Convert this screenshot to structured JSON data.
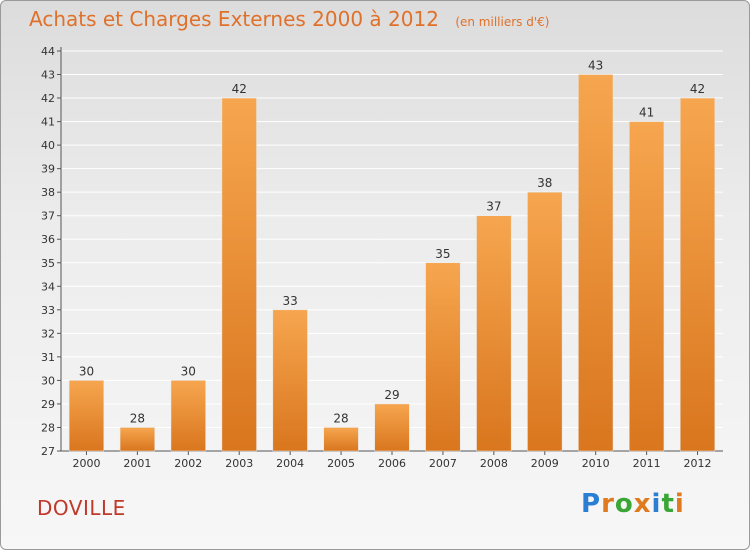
{
  "header": {
    "title": "Achats et Charges Externes 2000 à 2012",
    "subtitle": "(en milliers d'€)"
  },
  "footer": {
    "commune": "DOVILLE",
    "logo_letters": [
      "P",
      "r",
      "o",
      "x",
      "i",
      "t",
      "i"
    ],
    "logo_colors": [
      "#2a7fd4",
      "#e07a1f",
      "#3aa635",
      "#e07a1f",
      "#2a7fd4",
      "#3aa635",
      "#e07a1f"
    ]
  },
  "colors": {
    "bar_light": "#f6a64f",
    "bar_dark": "#d9761e",
    "text": "#333333",
    "grid": "#ffffff",
    "axis": "#555555"
  },
  "chart_data": {
    "type": "bar",
    "categories": [
      "2000",
      "2001",
      "2002",
      "2003",
      "2004",
      "2005",
      "2006",
      "2007",
      "2008",
      "2009",
      "2010",
      "2011",
      "2012"
    ],
    "values": [
      30,
      28,
      30,
      42,
      33,
      28,
      29,
      35,
      37,
      38,
      43,
      41,
      42
    ],
    "title": "Achats et Charges Externes 2000 à 2012",
    "xlabel": "",
    "ylabel": "",
    "ylim": [
      27,
      44
    ],
    "yticks": [
      27,
      28,
      29,
      30,
      31,
      32,
      33,
      34,
      35,
      36,
      37,
      38,
      39,
      40,
      41,
      42,
      43,
      44
    ],
    "grid": true,
    "legend": "none"
  }
}
